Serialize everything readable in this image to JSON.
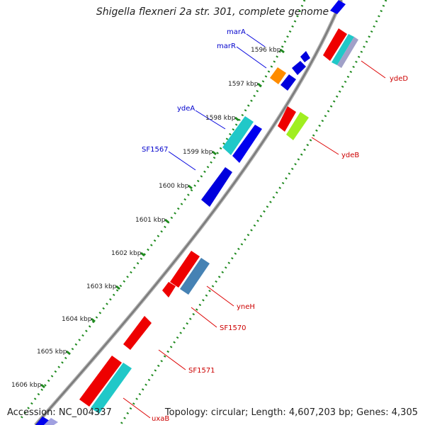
{
  "title": "Shigella flexneri 2a str. 301, complete genome",
  "accession": "Accession: NC_004337",
  "summary": "Topology: circular; Length: 4,607,203 bp; Genes: 4,305",
  "ticks": [
    "1596 kbp",
    "1597 kbp",
    "1598 kbp",
    "1599 kbp",
    "1600 kbp",
    "1601 kbp",
    "1602 kbp",
    "1603 kbp",
    "1604 kbp",
    "1605 kbp",
    "1606 kbp"
  ],
  "genes_forward": [
    "marA",
    "marR",
    "ydeA",
    "SF1567"
  ],
  "genes_reverse": [
    "ydeD",
    "ydeB",
    "yneH",
    "SF1570",
    "SF1571",
    "uxaB"
  ],
  "colors": {
    "backbone": "#8a8a8a",
    "forward_label": "#0000cc",
    "reverse_label": "#cc0000",
    "tick": "#1f8a1f",
    "blue": "#0000ee",
    "red": "#ee0000",
    "cyan": "#20c8c8",
    "orange": "#ff8c00",
    "lime": "#a0ee20",
    "steel": "#4682b4"
  }
}
